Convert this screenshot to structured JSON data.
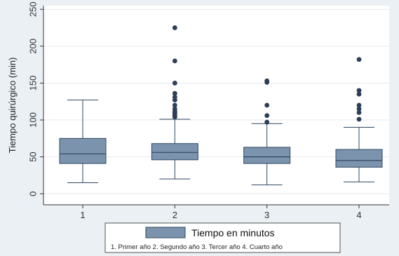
{
  "chart_data": {
    "type": "box",
    "title": "",
    "ylabel": "Tiempo quirúrgico (min)",
    "xlabel": "",
    "ylim": [
      -15,
      255
    ],
    "yticks": [
      0,
      50,
      100,
      150,
      200,
      250
    ],
    "categories": [
      "1",
      "2",
      "3",
      "4"
    ],
    "grid": true,
    "legend": {
      "position": "bottom",
      "series_name": "Tiempo en minutos",
      "note": "1. Primer año 2. Segundo año 3. Tercer año 4. Cuarto año"
    },
    "box_color": "#7b93ad",
    "box_stroke": "#2f4860",
    "point_color": "#2b3f57",
    "boxes": [
      {
        "category": "1",
        "whisker_low": 15,
        "q1": 41,
        "median": 54,
        "q3": 75,
        "whisker_high": 127,
        "outliers": []
      },
      {
        "category": "2",
        "whisker_low": 20,
        "q1": 46,
        "median": 56,
        "q3": 68,
        "whisker_high": 101,
        "outliers": [
          104,
          106,
          108,
          110,
          112,
          115,
          120,
          127,
          131,
          136,
          150,
          180,
          225
        ]
      },
      {
        "category": "3",
        "whisker_low": 12,
        "q1": 41,
        "median": 50,
        "q3": 63,
        "whisker_high": 95,
        "outliers": [
          97,
          106,
          120,
          151,
          153
        ]
      },
      {
        "category": "4",
        "whisker_low": 16,
        "q1": 36,
        "median": 45,
        "q3": 60,
        "whisker_high": 90,
        "outliers": [
          101,
          110,
          115,
          120,
          135,
          140,
          182
        ]
      }
    ]
  }
}
